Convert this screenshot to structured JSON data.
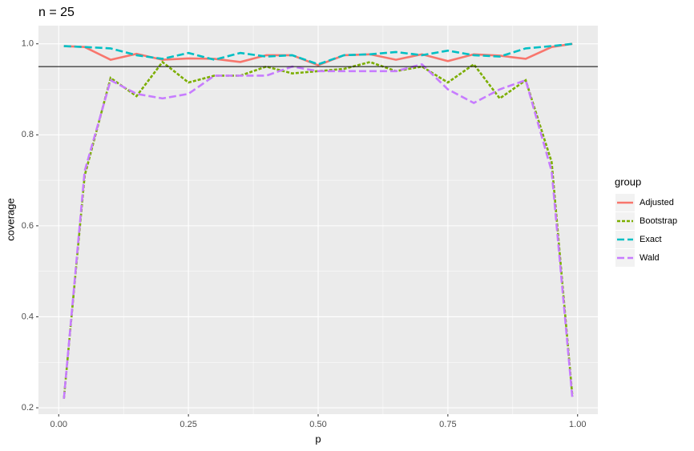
{
  "chart_data": {
    "type": "line",
    "title": "n = 25",
    "x_label": "p",
    "y_label": "coverage",
    "legend_title": "group",
    "legend_position": "right",
    "grid": true,
    "x": [
      0.01,
      0.05,
      0.1,
      0.15,
      0.2,
      0.25,
      0.3,
      0.35,
      0.4,
      0.45,
      0.5,
      0.55,
      0.6,
      0.65,
      0.7,
      0.75,
      0.8,
      0.85,
      0.9,
      0.95,
      0.99
    ],
    "series": [
      {
        "name": "Adjusted",
        "color": "#F8766D",
        "dash": "solid",
        "values": [
          0.995,
          0.993,
          0.965,
          0.978,
          0.965,
          0.968,
          0.967,
          0.96,
          0.975,
          0.975,
          0.953,
          0.975,
          0.977,
          0.965,
          0.977,
          0.962,
          0.977,
          0.974,
          0.967,
          0.993,
          1.0
        ]
      },
      {
        "name": "Bootstrap",
        "color": "#7CAE00",
        "dash": "dotted",
        "values": [
          0.22,
          0.71,
          0.925,
          0.885,
          0.96,
          0.915,
          0.93,
          0.93,
          0.95,
          0.935,
          0.94,
          0.945,
          0.96,
          0.94,
          0.95,
          0.915,
          0.955,
          0.88,
          0.92,
          0.74,
          0.225
        ]
      },
      {
        "name": "Exact",
        "color": "#00BFC4",
        "dash": "dashed",
        "values": [
          0.995,
          0.993,
          0.99,
          0.975,
          0.967,
          0.98,
          0.965,
          0.98,
          0.972,
          0.975,
          0.955,
          0.975,
          0.977,
          0.982,
          0.975,
          0.985,
          0.975,
          0.972,
          0.99,
          0.995,
          1.0
        ]
      },
      {
        "name": "Wald",
        "color": "#C77CFF",
        "dash": "dashed",
        "values": [
          0.22,
          0.72,
          0.92,
          0.89,
          0.88,
          0.89,
          0.93,
          0.93,
          0.93,
          0.95,
          0.94,
          0.94,
          0.94,
          0.94,
          0.955,
          0.9,
          0.87,
          0.9,
          0.92,
          0.72,
          0.22
        ]
      }
    ],
    "hline": 0.95,
    "xlim": [
      -0.039,
      1.039
    ],
    "ylim": [
      0.186,
      1.04
    ],
    "xticks": [
      {
        "value": 0,
        "label": "0.00"
      },
      {
        "value": 0.25,
        "label": "0.25"
      },
      {
        "value": 0.5,
        "label": "0.50"
      },
      {
        "value": 0.75,
        "label": "0.75"
      },
      {
        "value": 1,
        "label": "1.00"
      }
    ],
    "yticks": [
      {
        "value": 0.2,
        "label": "0.2"
      },
      {
        "value": 0.4,
        "label": "0.4"
      },
      {
        "value": 0.6,
        "label": "0.6"
      },
      {
        "value": 0.8,
        "label": "0.8"
      },
      {
        "value": 1,
        "label": "1.0"
      }
    ]
  }
}
